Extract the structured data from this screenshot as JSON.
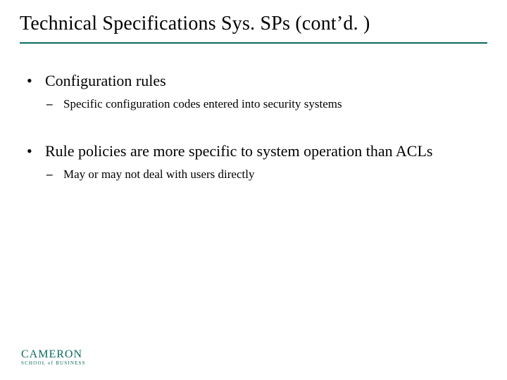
{
  "colors": {
    "rule": "#0a6a60",
    "logo": "#0a6a60",
    "text": "#000000",
    "background": "#ffffff"
  },
  "title": "Technical Specifications Sys. SPs (cont’d. )",
  "bullets": {
    "b1": {
      "text": "Configuration rules",
      "sub1": "Specific configuration codes entered into security systems"
    },
    "b2": {
      "text": "Rule policies are more specific to system operation than ACLs",
      "sub1": "May or may not deal with users directly"
    }
  },
  "logo": {
    "main": "CAMERON",
    "sub": "SCHOOL of BUSINESS"
  },
  "typography": {
    "title_fontsize": 28,
    "l1_fontsize": 22,
    "l2_fontsize": 17,
    "logo_main_fontsize": 16,
    "logo_sub_fontsize": 7
  }
}
